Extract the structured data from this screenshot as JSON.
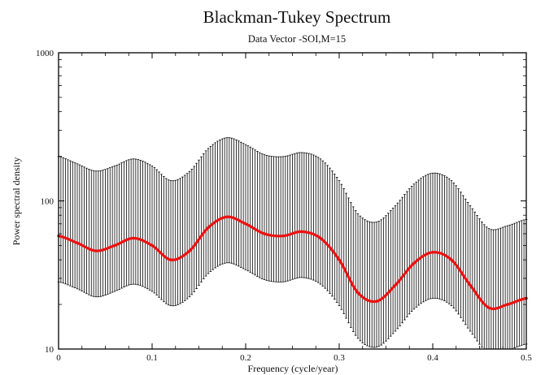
{
  "chart_data": {
    "type": "line",
    "title": "Blackman-Tukey Spectrum",
    "subtitle": "Data Vector -SOI,M=15",
    "xlabel": "Frequency (cycle/year)",
    "ylabel": "Power spectral density",
    "xlim": [
      0,
      0.5
    ],
    "ylim": [
      10,
      1000
    ],
    "yscale": "log",
    "x_ticks": [
      0,
      0.1,
      0.2,
      0.3,
      0.4,
      0.5
    ],
    "x_tick_labels": [
      "0",
      "0.1",
      "0.2",
      "0.3",
      "0.4",
      "0.5"
    ],
    "y_ticks": [
      10,
      100,
      1000
    ],
    "y_tick_labels": [
      "10",
      "100",
      "1000"
    ],
    "grid": false,
    "legend": "none",
    "colors": {
      "estimate": "#ee1111",
      "error_bars": "#000000"
    },
    "x": [
      0,
      0.02,
      0.04,
      0.06,
      0.08,
      0.1,
      0.12,
      0.14,
      0.16,
      0.18,
      0.2,
      0.22,
      0.24,
      0.26,
      0.28,
      0.3,
      0.32,
      0.34,
      0.36,
      0.38,
      0.4,
      0.42,
      0.44,
      0.46,
      0.48,
      0.5
    ],
    "series": [
      {
        "role": "estimate",
        "values": [
          58,
          52,
          46,
          50,
          56,
          50,
          40,
          46,
          66,
          78,
          70,
          60,
          58,
          62,
          56,
          40,
          24,
          21,
          27,
          38,
          45,
          40,
          27,
          19,
          20,
          22
        ]
      },
      {
        "role": "upper confidence bound",
        "values": [
          199,
          178,
          159,
          172,
          192,
          172,
          137,
          158,
          226,
          267,
          240,
          205,
          199,
          212,
          192,
          137,
          82,
          72,
          93,
          130,
          154,
          137,
          93,
          65,
          68,
          75
        ]
      },
      {
        "role": "lower confidence bound",
        "values": [
          28.4,
          25.5,
          22.5,
          24.5,
          27.4,
          24.5,
          19.6,
          22.5,
          32.3,
          38.2,
          34.3,
          29.4,
          28.4,
          30.4,
          27.4,
          19.6,
          11.8,
          10.3,
          13.2,
          18.6,
          22.0,
          19.6,
          13.2,
          9.3,
          9.8,
          10.8
        ]
      }
    ]
  }
}
